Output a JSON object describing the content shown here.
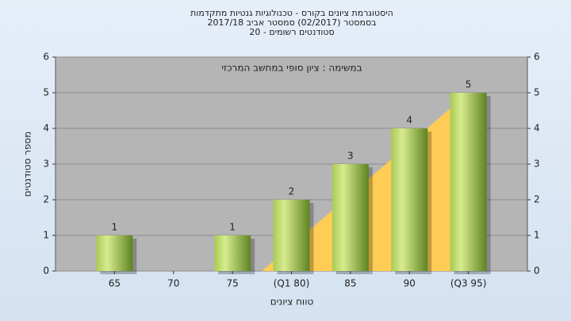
{
  "title_lines": [
    "היסטוגרמת ציונים בקורס - טכנולוגיות גנטיות מתקדמות",
    "בסמסטר  (02/2017)  סמסטר אביב 2017/18",
    "סטודנטים רשומים - 20"
  ],
  "chart_data": {
    "type": "bar",
    "subtitle": "במשימה : ציון סופי במחשב המרכזי",
    "x_label": "טווח ציונים",
    "y_label": "מספר סטודנטים",
    "categories": [
      "65",
      "70",
      "75",
      "(Q1 80)",
      "85",
      "90",
      "(Q3 95)"
    ],
    "values": [
      1,
      0,
      1,
      2,
      3,
      4,
      5
    ],
    "ylim": [
      0,
      6
    ],
    "yticks": [
      0,
      1,
      2,
      3,
      4,
      5,
      6
    ],
    "grid": true
  }
}
